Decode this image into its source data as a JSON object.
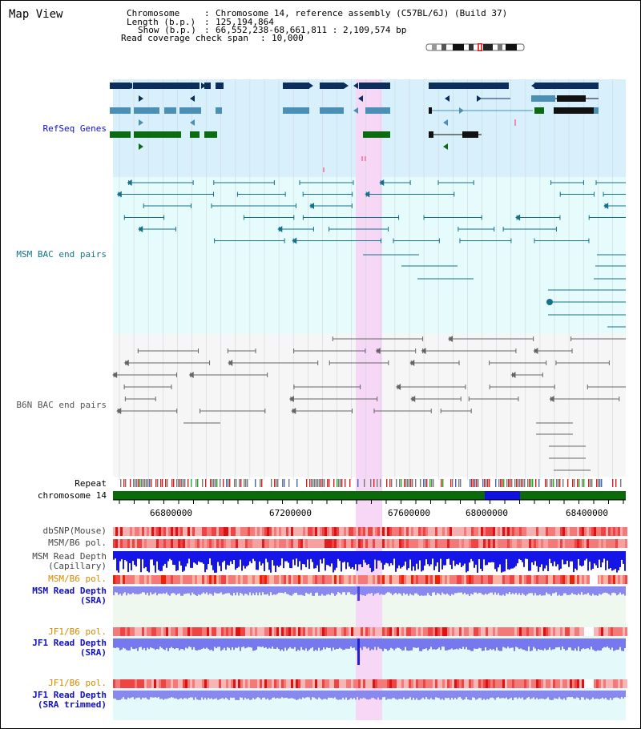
{
  "view_title": "Map View",
  "info": {
    "chromosome_label": "Chromosome",
    "chromosome_value": "Chromosome 14, reference assembly (C57BL/6J) (Build 37)",
    "length_label": "Length (b.p.)",
    "length_value": "125,194,864",
    "show_label": "Show (b.p.)",
    "show_value": "66,552,238-68,661,811 : 2,109,574 bp",
    "span_label": "Read coverage check span",
    "span_value": "10,000"
  },
  "tracks": {
    "refseq": "RefSeq Genes",
    "msm_bac": "MSM BAC end pairs",
    "b6n_bac": "B6N BAC end pairs",
    "repeat": "Repeat",
    "chromosome": "chromosome 14",
    "dbsnp": "dbSNP(Mouse)",
    "msm_b6_pol_1": "MSM/B6 pol.",
    "msm_depth_cap_1": "MSM Read Depth",
    "msm_depth_cap_2": "(Capillary)",
    "msm_b6_pol_2": "MSM/B6 pol.",
    "msm_depth_sra_1": "MSM Read Depth",
    "msm_depth_sra_2": "(SRA)",
    "jf1_b6_pol_1": "JF1/B6 pol.",
    "jf1_depth_sra_1": "JF1 Read Depth",
    "jf1_depth_sra_2": "(SRA)",
    "jf1_b6_pol_2": "JF1/B6 pol.",
    "jf1_depth_trim_1": "JF1 Read Depth",
    "jf1_depth_trim_2": "(SRA trimmed)"
  },
  "axis": {
    "ticks": [
      "66800000",
      "67200000",
      "67600000",
      "68000000",
      "68400000"
    ]
  },
  "colors": {
    "refseq_bg": "#d8f0fb",
    "msm_bac_bg": "#e6fbfb",
    "b6n_bac_bg": "#f6f6f6",
    "highlight": "#f6d8f6",
    "refseq_dark": "#0b2e5e",
    "refseq_mid": "#4c8fb5",
    "refseq_green": "#0a6b10",
    "msm_bac": "#15718a",
    "b6n_bac": "#666666",
    "chromosome_green": "#0b6b0b",
    "chromosome_blue": "#1010e0",
    "label_blue": "#1010c0",
    "label_teal": "#117788",
    "label_orange": "#d28a00",
    "label_gray": "#444444"
  }
}
